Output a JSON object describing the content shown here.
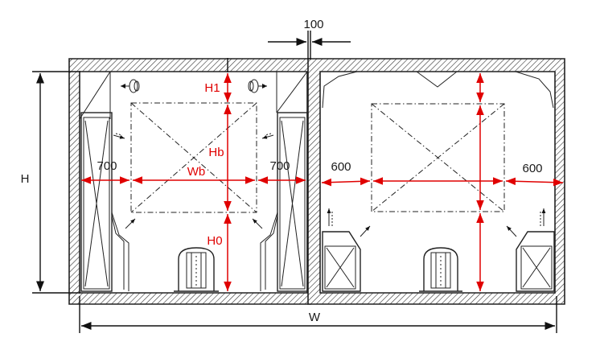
{
  "labels": {
    "gap_top": "100",
    "height_total": "H",
    "width_total": "W",
    "top_clearance": "H1",
    "box_height": "Hb",
    "box_width": "Wb",
    "bottom_clearance": "H0",
    "left_room_left_side": "700",
    "left_room_right_side": "700",
    "right_room_left_side": "600",
    "right_room_right_side": "600"
  },
  "colors": {
    "dimension_red": "#e00000",
    "line_black": "#222222",
    "background": "#ffffff"
  }
}
